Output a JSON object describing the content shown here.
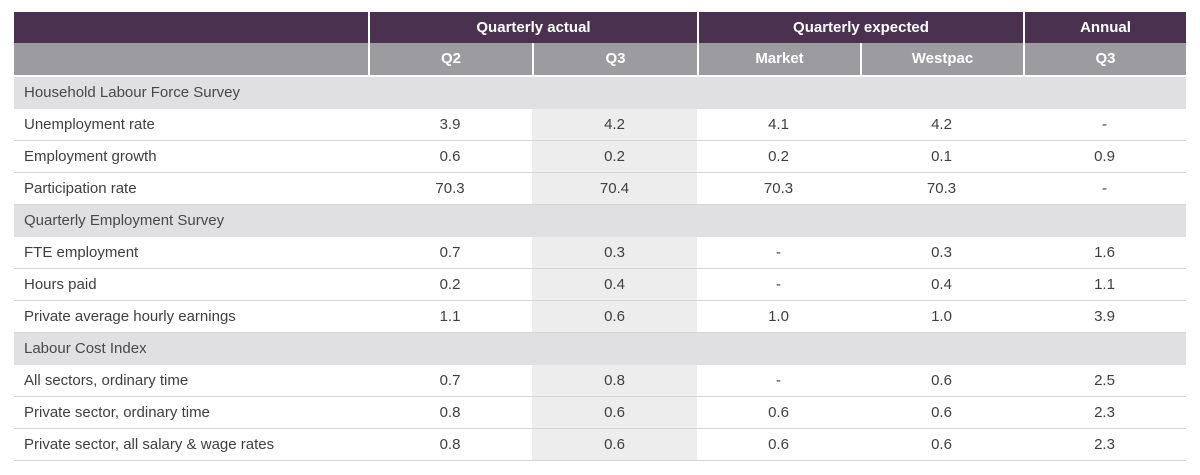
{
  "colors": {
    "header_bg": "#4a3150",
    "subheader_bg": "#9c9ca0",
    "section_band_bg": "#e0e0e2",
    "highlight_column_bg": "#ededee",
    "divider": "#d6d6d8",
    "header_text": "#ffffff",
    "body_text": "#3e3e40"
  },
  "chart_data": {
    "type": "table",
    "column_groups": [
      {
        "label": "",
        "span": 1
      },
      {
        "label": "Quarterly actual",
        "span": 2
      },
      {
        "label": "Quarterly expected",
        "span": 2
      },
      {
        "label": "Annual",
        "span": 1
      }
    ],
    "columns": [
      "Q2",
      "Q3",
      "Market",
      "Westpac",
      "Q3"
    ],
    "highlighted_column_index": 1,
    "sections": [
      {
        "title": "Household Labour Force Survey",
        "rows": [
          {
            "label": "Unemployment rate",
            "values": [
              "3.9",
              "4.2",
              "4.1",
              "4.2",
              "-"
            ]
          },
          {
            "label": "Employment growth",
            "values": [
              "0.6",
              "0.2",
              "0.2",
              "0.1",
              "0.9"
            ]
          },
          {
            "label": "Participation rate",
            "values": [
              "70.3",
              "70.4",
              "70.3",
              "70.3",
              "-"
            ]
          }
        ]
      },
      {
        "title": "Quarterly Employment Survey",
        "rows": [
          {
            "label": "FTE employment",
            "values": [
              "0.7",
              "0.3",
              "-",
              "0.3",
              "1.6"
            ]
          },
          {
            "label": "Hours paid",
            "values": [
              "0.2",
              "0.4",
              "-",
              "0.4",
              "1.1"
            ]
          },
          {
            "label": "Private average hourly earnings",
            "values": [
              "1.1",
              "0.6",
              "1.0",
              "1.0",
              "3.9"
            ]
          }
        ]
      },
      {
        "title": "Labour Cost Index",
        "rows": [
          {
            "label": "All sectors, ordinary time",
            "values": [
              "0.7",
              "0.8",
              "-",
              "0.6",
              "2.5"
            ]
          },
          {
            "label": "Private sector, ordinary time",
            "values": [
              "0.8",
              "0.6",
              "0.6",
              "0.6",
              "2.3"
            ]
          },
          {
            "label": "Private sector, all salary & wage rates",
            "values": [
              "0.8",
              "0.6",
              "0.6",
              "0.6",
              "2.3"
            ]
          }
        ]
      }
    ]
  }
}
